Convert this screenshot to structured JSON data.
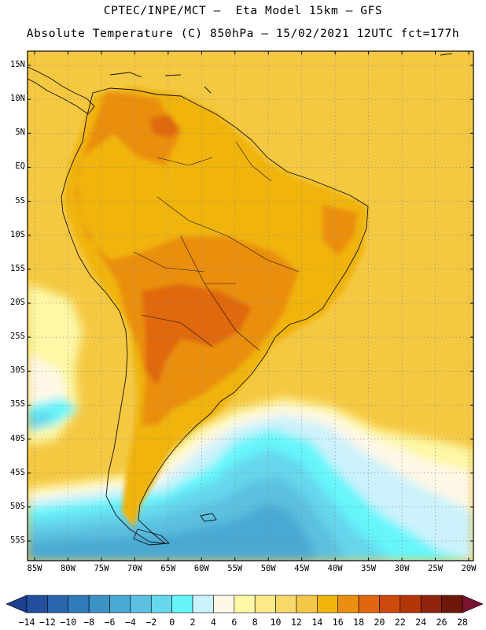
{
  "header": {
    "line1": "CPTEC/INPE/MCT –  Eta Model 15km – GFS",
    "line2": "Absolute Temperature (C) 850hPa – 15/02/2021 12UTC fct=177h"
  },
  "axes": {
    "lat_labels": [
      "15N",
      "10N",
      "5N",
      "EQ",
      "5S",
      "10S",
      "15S",
      "20S",
      "25S",
      "30S",
      "35S",
      "40S",
      "45S",
      "50S",
      "55S"
    ],
    "lon_labels": [
      "85W",
      "80W",
      "75W",
      "70W",
      "65W",
      "60W",
      "55W",
      "50W",
      "45W",
      "40W",
      "35W",
      "30W",
      "25W",
      "20W"
    ]
  },
  "colorbar": {
    "labels": [
      "-14",
      "-12",
      "-10",
      "-8",
      "-6",
      "-4",
      "-2",
      "0",
      "2",
      "4",
      "6",
      "8",
      "10",
      "12",
      "14",
      "16",
      "18",
      "20",
      "22",
      "24",
      "26",
      "28"
    ],
    "colors": [
      "#1e3f8c",
      "#22509f",
      "#2a66ae",
      "#307bba",
      "#3b92c5",
      "#49a9d3",
      "#5cc0e0",
      "#66d7ec",
      "#66f5fb",
      "#ccf2fb",
      "#fff8e6",
      "#fdf7a6",
      "#fbe98a",
      "#f7d96a",
      "#f3c74a",
      "#f0b40c",
      "#ea8f10",
      "#e06710",
      "#cd4a0d",
      "#b33609",
      "#8f240a",
      "#6e180c",
      "#7a1232"
    ]
  },
  "map": {
    "ocean_color": "#f5c842",
    "land_color": "#f0b40c",
    "warm_color": "#ea8f10",
    "hot_color": "#e06710",
    "cool_colors": [
      "#fdf7a6",
      "#fff8e6",
      "#ccf2fb",
      "#66f5fb",
      "#66d7ec",
      "#5cc0e0",
      "#49a9d3"
    ]
  }
}
